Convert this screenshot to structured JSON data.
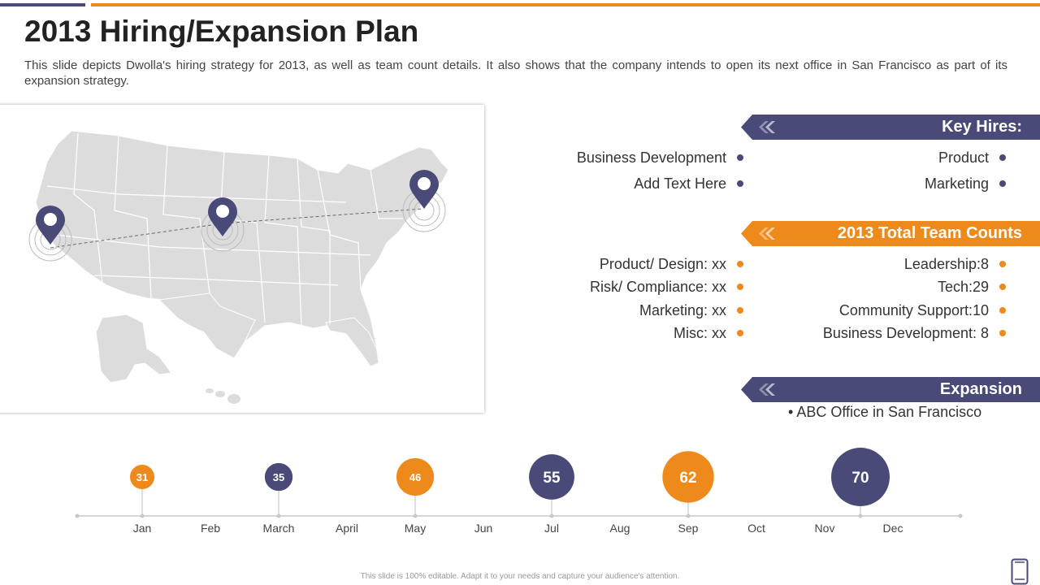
{
  "header": {
    "title": "2013 Hiring/Expansion Plan",
    "subtitle": "This slide depicts Dwolla's hiring strategy for 2013, as well as team count details. It also shows that the company intends to open its next office in San Francisco as part of its expansion strategy."
  },
  "colors": {
    "purple": "#4a4a78",
    "orange": "#ee8a1c",
    "map_gray": "#dcdcdc"
  },
  "key_hires": {
    "title": "Key Hires:",
    "left": [
      "Business Development",
      "Add Text Here"
    ],
    "right": [
      "Product",
      "Marketing"
    ]
  },
  "team_counts": {
    "title": "2013 Total Team Counts",
    "left": [
      "Product/ Design: xx",
      "Risk/ Compliance: xx",
      "Marketing: xx",
      "Misc: xx"
    ],
    "right": [
      "Leadership:8",
      "Tech:29",
      "Community Support:10",
      "Business Development: 8"
    ]
  },
  "expansion": {
    "title": "Expansion",
    "bullet": "•",
    "items": [
      "ABC Office in San Francisco"
    ]
  },
  "chart_data": {
    "type": "timeline-bubbles",
    "categories": [
      "Jan",
      "Feb",
      "March",
      "April",
      "May",
      "Jun",
      "Jul",
      "Aug",
      "Sep",
      "Oct",
      "Nov",
      "Dec"
    ],
    "points": [
      {
        "category": "Jan",
        "value": 31,
        "color": "orange"
      },
      {
        "category": "March",
        "value": 35,
        "color": "purple"
      },
      {
        "category": "May",
        "value": 46,
        "color": "orange"
      },
      {
        "category": "Jul",
        "value": 55,
        "color": "purple"
      },
      {
        "category": "Sep",
        "value": 62,
        "color": "orange"
      },
      {
        "category": "Dec",
        "value": 70,
        "color": "purple"
      }
    ]
  },
  "footer": {
    "note": "This slide is 100% editable. Adapt it to your needs and capture your audience's attention."
  },
  "icons": {
    "map_pin": "map-pin-icon",
    "arrow": "chevron-left-icon",
    "phone": "phone-icon"
  }
}
